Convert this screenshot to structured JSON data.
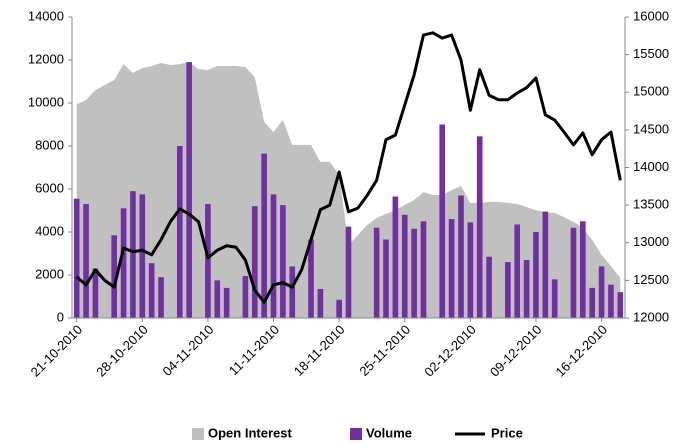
{
  "chart_data": {
    "type": "combo",
    "categories": [
      "21-10-2010",
      null,
      null,
      null,
      null,
      null,
      null,
      "28-10-2010",
      null,
      null,
      null,
      null,
      null,
      null,
      "04-11-2010",
      null,
      null,
      null,
      null,
      null,
      null,
      "11-11-2010",
      null,
      null,
      null,
      null,
      null,
      null,
      "18-11-2010",
      null,
      null,
      null,
      null,
      null,
      null,
      "25-11-2010",
      null,
      null,
      null,
      null,
      null,
      null,
      "02-12-2010",
      null,
      null,
      null,
      null,
      null,
      null,
      "09-12-2010",
      null,
      null,
      null,
      null,
      null,
      null,
      "16-12-2010",
      null,
      null
    ],
    "series": [
      {
        "name": "Open Interest",
        "type": "area",
        "color": "#c0c0c0",
        "values": [
          9950,
          10140,
          10600,
          10840,
          11070,
          11810,
          11400,
          11630,
          11720,
          11860,
          11770,
          11810,
          11910,
          11580,
          11530,
          11720,
          11720,
          11720,
          11670,
          11210,
          9120,
          8650,
          9210,
          8050,
          8050,
          8050,
          7260,
          7260,
          6650,
          3400,
          3860,
          4330,
          4650,
          4840,
          5020,
          5260,
          5490,
          5860,
          5720,
          5720,
          5950,
          6140,
          5350,
          5350,
          5400,
          5400,
          5350,
          5300,
          5160,
          5020,
          4930,
          4880,
          4700,
          4470,
          4190,
          3630,
          2930,
          2420,
          1860
        ]
      },
      {
        "name": "Volume",
        "type": "bar",
        "color": "#7030a0",
        "values": [
          5550,
          5300,
          2300,
          null,
          3850,
          5100,
          5900,
          5750,
          2550,
          1900,
          null,
          8000,
          11900,
          null,
          5300,
          1750,
          1400,
          null,
          1950,
          5200,
          7650,
          5750,
          5250,
          2400,
          null,
          3650,
          1350,
          null,
          850,
          4250,
          null,
          null,
          4200,
          3650,
          5650,
          4800,
          4150,
          4500,
          null,
          9000,
          4600,
          5700,
          4450,
          8450,
          2850,
          null,
          2600,
          4350,
          2700,
          4000,
          4950,
          1800,
          null,
          4200,
          4500,
          1400,
          2400,
          1550,
          1200
        ]
      },
      {
        "name": "Price",
        "type": "line",
        "axis": "y2",
        "color": "#000000",
        "values": [
          12545,
          12440,
          12640,
          12500,
          12410,
          12930,
          12880,
          12900,
          12840,
          13040,
          13280,
          13450,
          13380,
          13280,
          12800,
          12900,
          12960,
          12940,
          12770,
          12370,
          12210,
          12440,
          12470,
          12410,
          12640,
          13040,
          13440,
          13500,
          13940,
          13410,
          13460,
          13630,
          13830,
          14370,
          14430,
          14830,
          15230,
          15760,
          15790,
          15720,
          15760,
          15430,
          14760,
          15300,
          14960,
          14900,
          14900,
          14990,
          15060,
          15190,
          14700,
          14630,
          14470,
          14300,
          14460,
          14170,
          14370,
          14470,
          13830
        ]
      }
    ],
    "ylim": [
      0,
      14000
    ],
    "yticks": [
      0,
      2000,
      4000,
      6000,
      8000,
      10000,
      12000,
      14000
    ],
    "y2lim": [
      12000,
      16000
    ],
    "y2ticks": [
      12000,
      12500,
      13000,
      13500,
      14000,
      14500,
      15000,
      15500,
      16000
    ],
    "legend": "bottom"
  }
}
